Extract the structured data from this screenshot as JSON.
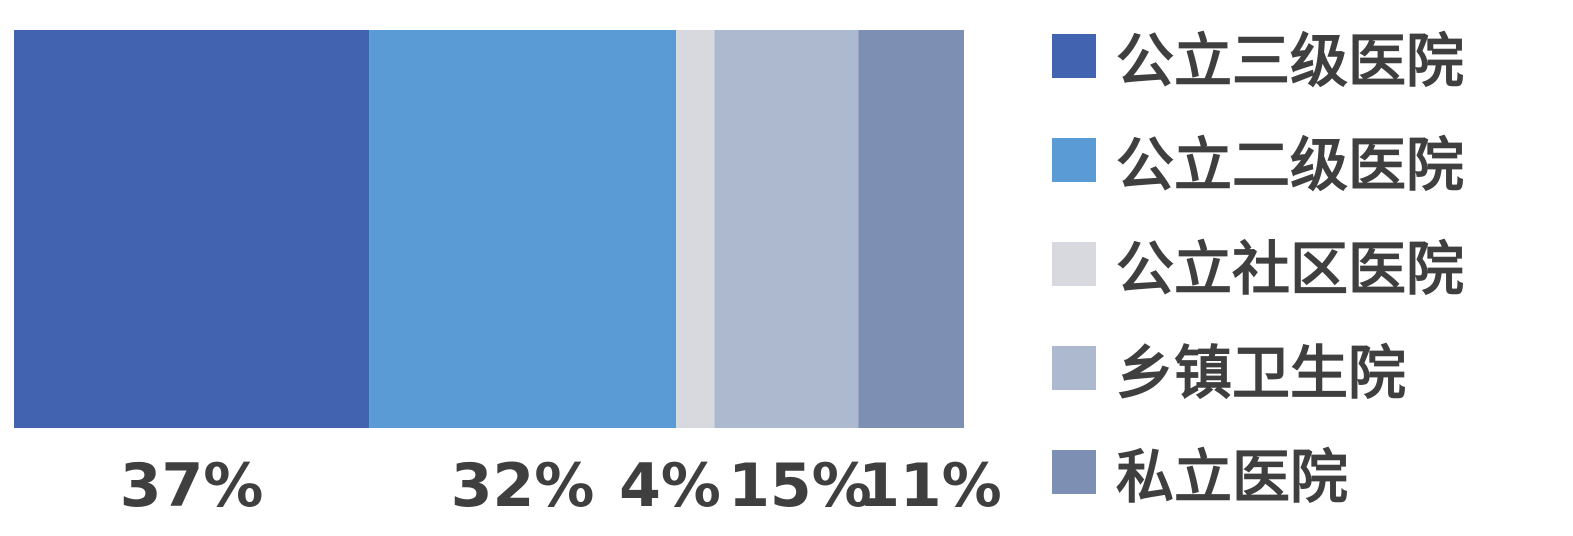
{
  "chart_data": {
    "type": "bar",
    "orientation": "horizontal-stacked-100",
    "categories": [
      "公立三级医院",
      "公立二级医院",
      "公立社区医院",
      "乡镇卫生院",
      "私立医院"
    ],
    "values": [
      37,
      32,
      4,
      15,
      11
    ],
    "labels": [
      "37%",
      "32%",
      "4%",
      "15%",
      "11%"
    ],
    "colors": [
      "#4264b0",
      "#5b9bd5",
      "#d8d9de",
      "#adb9cf",
      "#7d8fb2"
    ],
    "title": "",
    "xlabel": "",
    "ylabel": "",
    "legend_position": "right",
    "grid": false
  }
}
